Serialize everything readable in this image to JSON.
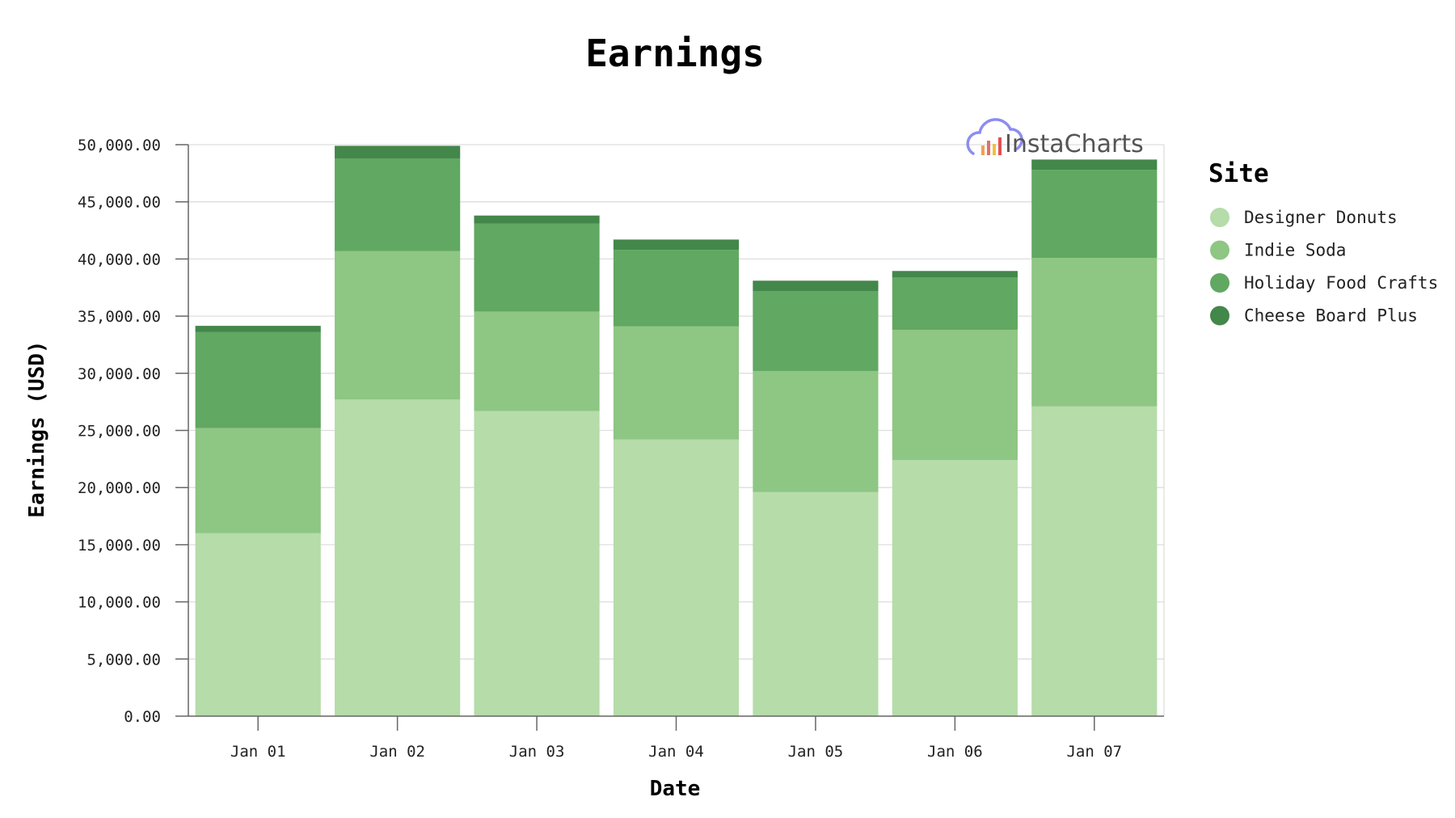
{
  "chart_data": {
    "type": "bar",
    "stacked": true,
    "title": "Earnings",
    "xlabel": "Date",
    "ylabel": "Earnings (USD)",
    "ylim": [
      0,
      50000
    ],
    "yticks": [
      "0.00",
      "5,000.00",
      "10,000.00",
      "15,000.00",
      "20,000.00",
      "25,000.00",
      "30,000.00",
      "35,000.00",
      "40,000.00",
      "45,000.00",
      "50,000.00"
    ],
    "ytick_values": [
      0,
      5000,
      10000,
      15000,
      20000,
      25000,
      30000,
      35000,
      40000,
      45000,
      50000
    ],
    "categories": [
      "Jan 01",
      "Jan 02",
      "Jan 03",
      "Jan 04",
      "Jan 05",
      "Jan 06",
      "Jan 07"
    ],
    "legend_title": "Site",
    "legend_position": "right",
    "grid": true,
    "series": [
      {
        "name": "Designer Donuts",
        "color": "#b5dca9",
        "values": [
          16000,
          27700,
          26700,
          24200,
          19600,
          22400,
          27100
        ]
      },
      {
        "name": "Indie Soda",
        "color": "#8ec683",
        "values": [
          9200,
          13000,
          8700,
          9900,
          10600,
          11400,
          13000
        ]
      },
      {
        "name": "Holiday Food Crafts",
        "color": "#61a862",
        "values": [
          8400,
          8100,
          7700,
          6700,
          7000,
          4600,
          7700
        ]
      },
      {
        "name": "Cheese Board Plus",
        "color": "#43874a",
        "values": [
          550,
          1100,
          700,
          900,
          900,
          550,
          900
        ]
      }
    ]
  },
  "watermark": {
    "text": "InstaCharts",
    "icon": "cloud-bars-icon"
  }
}
